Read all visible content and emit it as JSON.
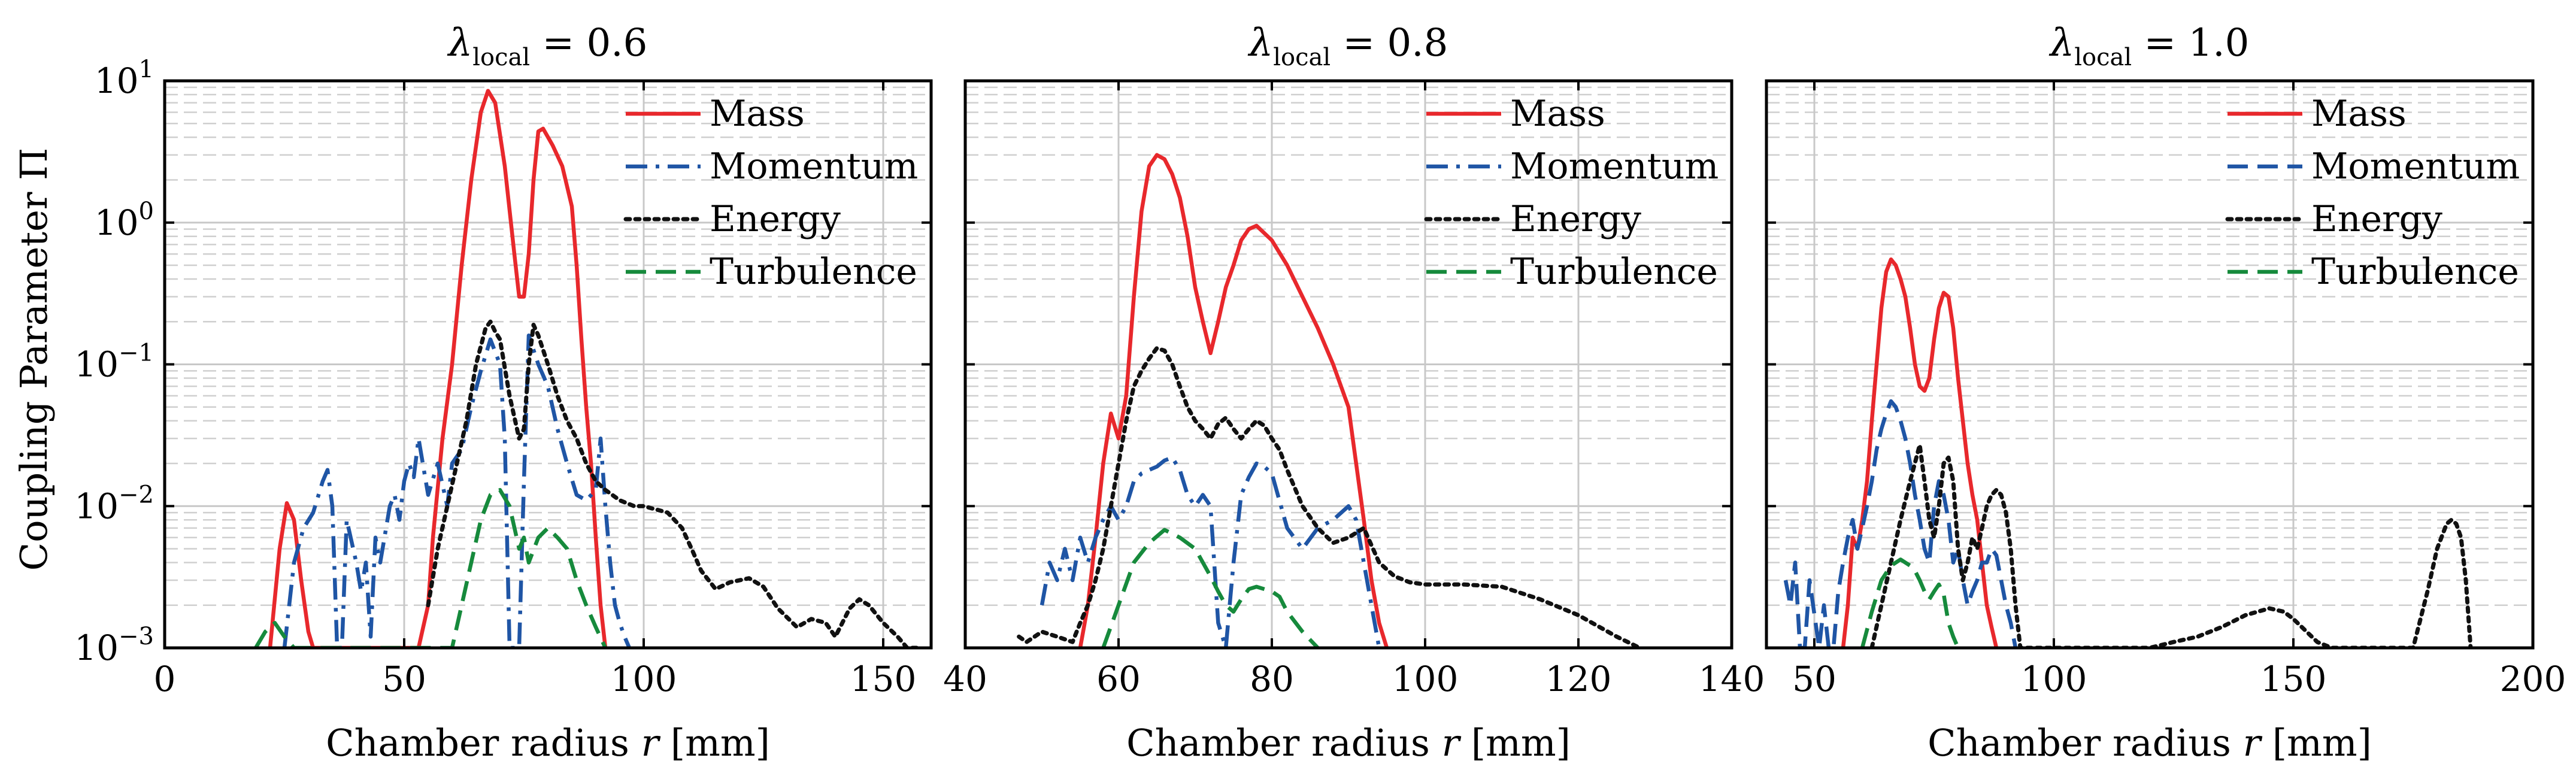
{
  "chart_data": [
    {
      "type": "line",
      "title_symbol": "λ",
      "title_subscript": "local",
      "title_value": " = 0.6",
      "xlabel": "Chamber radius r [mm]",
      "ylabel": "Coupling Parameter Π",
      "xlim": [
        0,
        160
      ],
      "ylim": [
        0.001,
        10
      ],
      "yscale": "log",
      "xticks": [
        0,
        50,
        100,
        150
      ],
      "xtick_labels": [
        "0",
        "50",
        "100",
        "150"
      ],
      "yticks": [
        0.001,
        0.01,
        0.1,
        1,
        10
      ],
      "ytick_labels": [
        "10⁻³",
        "10⁻²",
        "10⁻¹",
        "10⁰",
        "10¹"
      ],
      "grid": true,
      "legend_position": "top-right",
      "series": [
        {
          "name": "Mass",
          "color": "#e8282c",
          "dash": "solid",
          "x": [
            22,
            24,
            25.5,
            27,
            28.5,
            30,
            31,
            53,
            55,
            56,
            58,
            60,
            62,
            64,
            66,
            67.5,
            69,
            71,
            73,
            74,
            75,
            76,
            77,
            78,
            79,
            81,
            83,
            85,
            86,
            87,
            88,
            89,
            90,
            91,
            92
          ],
          "y": [
            0.001,
            0.005,
            0.0105,
            0.008,
            0.003,
            0.0013,
            0.001,
            0.001,
            0.002,
            0.006,
            0.03,
            0.1,
            0.5,
            2.0,
            6.0,
            8.5,
            7.0,
            2.5,
            0.6,
            0.3,
            0.3,
            0.6,
            2.0,
            4.4,
            4.6,
            3.5,
            2.5,
            1.3,
            0.5,
            0.15,
            0.05,
            0.02,
            0.006,
            0.002,
            0.001
          ]
        },
        {
          "name": "Momentum",
          "color": "#1f55a5",
          "dash": "dashdot",
          "x": [
            25,
            27,
            29,
            31,
            33,
            34,
            35,
            36,
            37,
            38,
            40,
            41,
            42,
            43,
            44,
            45,
            47,
            48,
            49,
            50,
            51,
            52,
            53,
            55,
            57,
            59,
            60,
            62,
            64,
            66,
            68,
            70,
            71,
            72,
            73,
            74,
            75,
            76,
            78,
            80,
            82,
            84,
            86,
            88,
            90,
            91,
            92,
            93,
            94,
            95,
            96,
            97
          ],
          "y": [
            0.001,
            0.004,
            0.007,
            0.009,
            0.015,
            0.018,
            0.01,
            0.001,
            0.001,
            0.008,
            0.004,
            0.0025,
            0.004,
            0.0012,
            0.006,
            0.004,
            0.01,
            0.012,
            0.008,
            0.015,
            0.02,
            0.016,
            0.03,
            0.012,
            0.02,
            0.01,
            0.02,
            0.025,
            0.05,
            0.09,
            0.15,
            0.1,
            0.03,
            0.001,
            0.001,
            0.001,
            0.015,
            0.16,
            0.1,
            0.07,
            0.035,
            0.02,
            0.012,
            0.011,
            0.013,
            0.03,
            0.01,
            0.004,
            0.002,
            0.0015,
            0.0012,
            0.001
          ]
        },
        {
          "name": "Energy",
          "color": "#111111",
          "dash": "dotted",
          "x": [
            55,
            57,
            59,
            61,
            63,
            65,
            67,
            68,
            69,
            70,
            72,
            74,
            75,
            76,
            77,
            78,
            80,
            82,
            84,
            86,
            88,
            90,
            92,
            95,
            98,
            100,
            105,
            108,
            110,
            112,
            115,
            118,
            122,
            125,
            128,
            132,
            135,
            138,
            140,
            143,
            145,
            147,
            150,
            153,
            155,
            157
          ],
          "y": [
            0.002,
            0.005,
            0.01,
            0.02,
            0.04,
            0.1,
            0.18,
            0.2,
            0.17,
            0.15,
            0.06,
            0.03,
            0.035,
            0.1,
            0.19,
            0.16,
            0.1,
            0.06,
            0.04,
            0.03,
            0.02,
            0.015,
            0.013,
            0.011,
            0.01,
            0.01,
            0.009,
            0.007,
            0.005,
            0.0035,
            0.0026,
            0.0029,
            0.0031,
            0.0027,
            0.0019,
            0.0014,
            0.0016,
            0.0015,
            0.0012,
            0.0019,
            0.0022,
            0.002,
            0.0015,
            0.0012,
            0.001,
            0.001
          ]
        },
        {
          "name": "Turbulence",
          "color": "#168a3c",
          "dash": "dashed",
          "x": [
            19,
            21,
            23,
            25,
            27,
            60,
            62,
            64,
            66,
            68,
            70,
            72,
            74,
            75,
            76,
            78,
            80,
            82,
            84,
            86,
            88,
            90,
            92
          ],
          "y": [
            0.001,
            0.0013,
            0.0015,
            0.0012,
            0.001,
            0.001,
            0.002,
            0.004,
            0.008,
            0.012,
            0.013,
            0.01,
            0.005,
            0.006,
            0.004,
            0.006,
            0.007,
            0.006,
            0.005,
            0.003,
            0.002,
            0.0014,
            0.001
          ]
        }
      ]
    },
    {
      "type": "line",
      "title_symbol": "λ",
      "title_subscript": "local",
      "title_value": " = 0.8",
      "xlabel": "Chamber radius r [mm]",
      "xlim": [
        40,
        140
      ],
      "ylim": [
        0.001,
        10
      ],
      "yscale": "log",
      "xticks": [
        40,
        60,
        80,
        100,
        120,
        140
      ],
      "xtick_labels": [
        "40",
        "60",
        "80",
        "100",
        "120",
        "140"
      ],
      "yticks": [
        0.001,
        0.01,
        0.1,
        1,
        10
      ],
      "grid": true,
      "legend_position": "top-right",
      "series": [
        {
          "name": "Mass",
          "color": "#e8282c",
          "dash": "solid",
          "x": [
            55,
            56,
            57,
            58,
            59,
            60,
            61,
            62,
            63,
            64,
            65,
            66,
            67,
            68,
            69,
            70,
            71,
            72,
            73,
            74,
            75,
            76,
            77,
            78,
            80,
            82,
            84,
            86,
            88,
            90,
            91,
            92,
            93,
            94,
            95
          ],
          "y": [
            0.001,
            0.002,
            0.006,
            0.02,
            0.045,
            0.03,
            0.06,
            0.3,
            1.2,
            2.5,
            3.0,
            2.8,
            2.2,
            1.5,
            0.8,
            0.35,
            0.2,
            0.12,
            0.2,
            0.35,
            0.5,
            0.75,
            0.9,
            0.95,
            0.75,
            0.5,
            0.3,
            0.18,
            0.1,
            0.05,
            0.02,
            0.008,
            0.003,
            0.0015,
            0.001
          ]
        },
        {
          "name": "Momentum",
          "color": "#1f55a5",
          "dash": "dashdot",
          "x": [
            50,
            51,
            52,
            53,
            54,
            55,
            56,
            57,
            58,
            59,
            60,
            61,
            62,
            63,
            64,
            65,
            66,
            67,
            68,
            69,
            70,
            71,
            72,
            73,
            74,
            75,
            76,
            77,
            78,
            79,
            80,
            82,
            84,
            86,
            88,
            90,
            91,
            92,
            93,
            94
          ],
          "y": [
            0.002,
            0.004,
            0.003,
            0.005,
            0.003,
            0.006,
            0.004,
            0.006,
            0.008,
            0.01,
            0.008,
            0.01,
            0.015,
            0.017,
            0.018,
            0.019,
            0.021,
            0.022,
            0.018,
            0.012,
            0.01,
            0.012,
            0.01,
            0.0015,
            0.001,
            0.004,
            0.012,
            0.016,
            0.02,
            0.019,
            0.017,
            0.007,
            0.005,
            0.007,
            0.008,
            0.01,
            0.008,
            0.004,
            0.002,
            0.001
          ]
        },
        {
          "name": "Energy",
          "color": "#111111",
          "dash": "dotted",
          "x": [
            47,
            48,
            50,
            52,
            54,
            55,
            56,
            57,
            58,
            59,
            60,
            61,
            62,
            63,
            64,
            65,
            66,
            67,
            68,
            69,
            70,
            71,
            72,
            73,
            74,
            75,
            76,
            77,
            78,
            79,
            80,
            81,
            82,
            84,
            86,
            88,
            90,
            92,
            94,
            96,
            98,
            100,
            105,
            110,
            115,
            120,
            125,
            128
          ],
          "y": [
            0.0012,
            0.0011,
            0.0013,
            0.0012,
            0.0011,
            0.0015,
            0.002,
            0.003,
            0.005,
            0.01,
            0.02,
            0.04,
            0.07,
            0.09,
            0.11,
            0.13,
            0.125,
            0.1,
            0.07,
            0.05,
            0.04,
            0.035,
            0.03,
            0.038,
            0.042,
            0.035,
            0.03,
            0.035,
            0.04,
            0.037,
            0.03,
            0.025,
            0.018,
            0.01,
            0.007,
            0.0055,
            0.006,
            0.007,
            0.004,
            0.0032,
            0.0029,
            0.0028,
            0.0028,
            0.0027,
            0.0022,
            0.0017,
            0.0012,
            0.001
          ]
        },
        {
          "name": "Turbulence",
          "color": "#168a3c",
          "dash": "dashed",
          "x": [
            58,
            60,
            62,
            64,
            66,
            68,
            70,
            72,
            73,
            74,
            75,
            76,
            77,
            78,
            79,
            80,
            81,
            82,
            84,
            86
          ],
          "y": [
            0.001,
            0.002,
            0.004,
            0.0055,
            0.0068,
            0.006,
            0.005,
            0.0032,
            0.0025,
            0.002,
            0.0018,
            0.0022,
            0.0026,
            0.0027,
            0.0026,
            0.0025,
            0.0023,
            0.0018,
            0.0013,
            0.001
          ]
        }
      ]
    },
    {
      "type": "line",
      "title_symbol": "λ",
      "title_subscript": "local",
      "title_value": " = 1.0",
      "xlabel": "Chamber radius r [mm]",
      "xlim": [
        40,
        200
      ],
      "ylim": [
        0.001,
        10
      ],
      "yscale": "log",
      "xticks": [
        50,
        100,
        150,
        200
      ],
      "xtick_labels": [
        "50",
        "100",
        "150",
        "200"
      ],
      "yticks": [
        0.001,
        0.01,
        0.1,
        1,
        10
      ],
      "grid": true,
      "legend_position": "top-right",
      "series": [
        {
          "name": "Mass",
          "color": "#e8282c",
          "dash": "solid",
          "x": [
            56,
            57,
            58,
            59,
            60,
            61,
            62,
            63,
            64,
            65,
            66,
            67,
            68,
            69,
            70,
            71,
            72,
            73,
            74,
            75,
            76,
            77,
            78,
            79,
            80,
            81,
            82,
            83,
            84,
            85,
            86,
            87,
            88
          ],
          "y": [
            0.001,
            0.002,
            0.006,
            0.005,
            0.008,
            0.015,
            0.04,
            0.1,
            0.25,
            0.45,
            0.55,
            0.5,
            0.4,
            0.3,
            0.18,
            0.1,
            0.07,
            0.065,
            0.08,
            0.15,
            0.25,
            0.32,
            0.3,
            0.18,
            0.08,
            0.04,
            0.02,
            0.012,
            0.008,
            0.004,
            0.002,
            0.0014,
            0.001
          ]
        },
        {
          "name": "Momentum",
          "color": "#1f55a5",
          "dash": "dashed",
          "x": [
            44,
            45,
            46,
            47,
            48,
            49,
            51,
            52,
            53,
            54,
            55,
            56,
            57,
            58,
            59,
            60,
            61,
            62,
            63,
            64,
            65,
            66,
            67,
            68,
            69,
            70,
            71,
            72,
            73,
            74,
            75,
            76,
            77,
            78,
            79,
            80,
            81,
            82,
            83,
            84,
            85,
            86,
            87,
            88,
            89,
            90,
            91,
            92
          ],
          "y": [
            0.003,
            0.002,
            0.004,
            0.001,
            0.001,
            0.003,
            0.001,
            0.002,
            0.001,
            0.001,
            0.0025,
            0.004,
            0.006,
            0.008,
            0.005,
            0.007,
            0.01,
            0.015,
            0.025,
            0.035,
            0.045,
            0.055,
            0.05,
            0.04,
            0.03,
            0.02,
            0.012,
            0.008,
            0.005,
            0.004,
            0.01,
            0.015,
            0.012,
            0.008,
            0.004,
            0.005,
            0.003,
            0.002,
            0.0025,
            0.003,
            0.004,
            0.004,
            0.005,
            0.0045,
            0.003,
            0.002,
            0.0015,
            0.001
          ]
        },
        {
          "name": "Energy",
          "color": "#111111",
          "dash": "dotted",
          "x": [
            62,
            64,
            66,
            68,
            70,
            72,
            73,
            74,
            75,
            76,
            77,
            78,
            79,
            80,
            81,
            82,
            83,
            84,
            85,
            86,
            87,
            88,
            89,
            90,
            91,
            92,
            93,
            120,
            125,
            130,
            135,
            140,
            145,
            148,
            150,
            155,
            158,
            160,
            175,
            178,
            180,
            182,
            183,
            184,
            185,
            186,
            187
          ],
          "y": [
            0.001,
            0.002,
            0.004,
            0.008,
            0.015,
            0.027,
            0.015,
            0.008,
            0.006,
            0.01,
            0.02,
            0.022,
            0.015,
            0.005,
            0.003,
            0.004,
            0.006,
            0.005,
            0.007,
            0.01,
            0.012,
            0.013,
            0.012,
            0.009,
            0.005,
            0.002,
            0.001,
            0.001,
            0.0011,
            0.0012,
            0.0014,
            0.0017,
            0.0019,
            0.0018,
            0.0016,
            0.0011,
            0.001,
            0.001,
            0.001,
            0.0025,
            0.005,
            0.0075,
            0.008,
            0.0075,
            0.006,
            0.003,
            0.001
          ]
        },
        {
          "name": "Turbulence",
          "color": "#168a3c",
          "dash": "dashed",
          "x": [
            60,
            62,
            64,
            66,
            68,
            70,
            71,
            72,
            73,
            74,
            75,
            76,
            77,
            78,
            79,
            80
          ],
          "y": [
            0.001,
            0.0018,
            0.003,
            0.0038,
            0.0042,
            0.0038,
            0.0035,
            0.003,
            0.0025,
            0.0022,
            0.0025,
            0.0028,
            0.0024,
            0.0015,
            0.0012,
            0.001
          ]
        }
      ]
    }
  ]
}
